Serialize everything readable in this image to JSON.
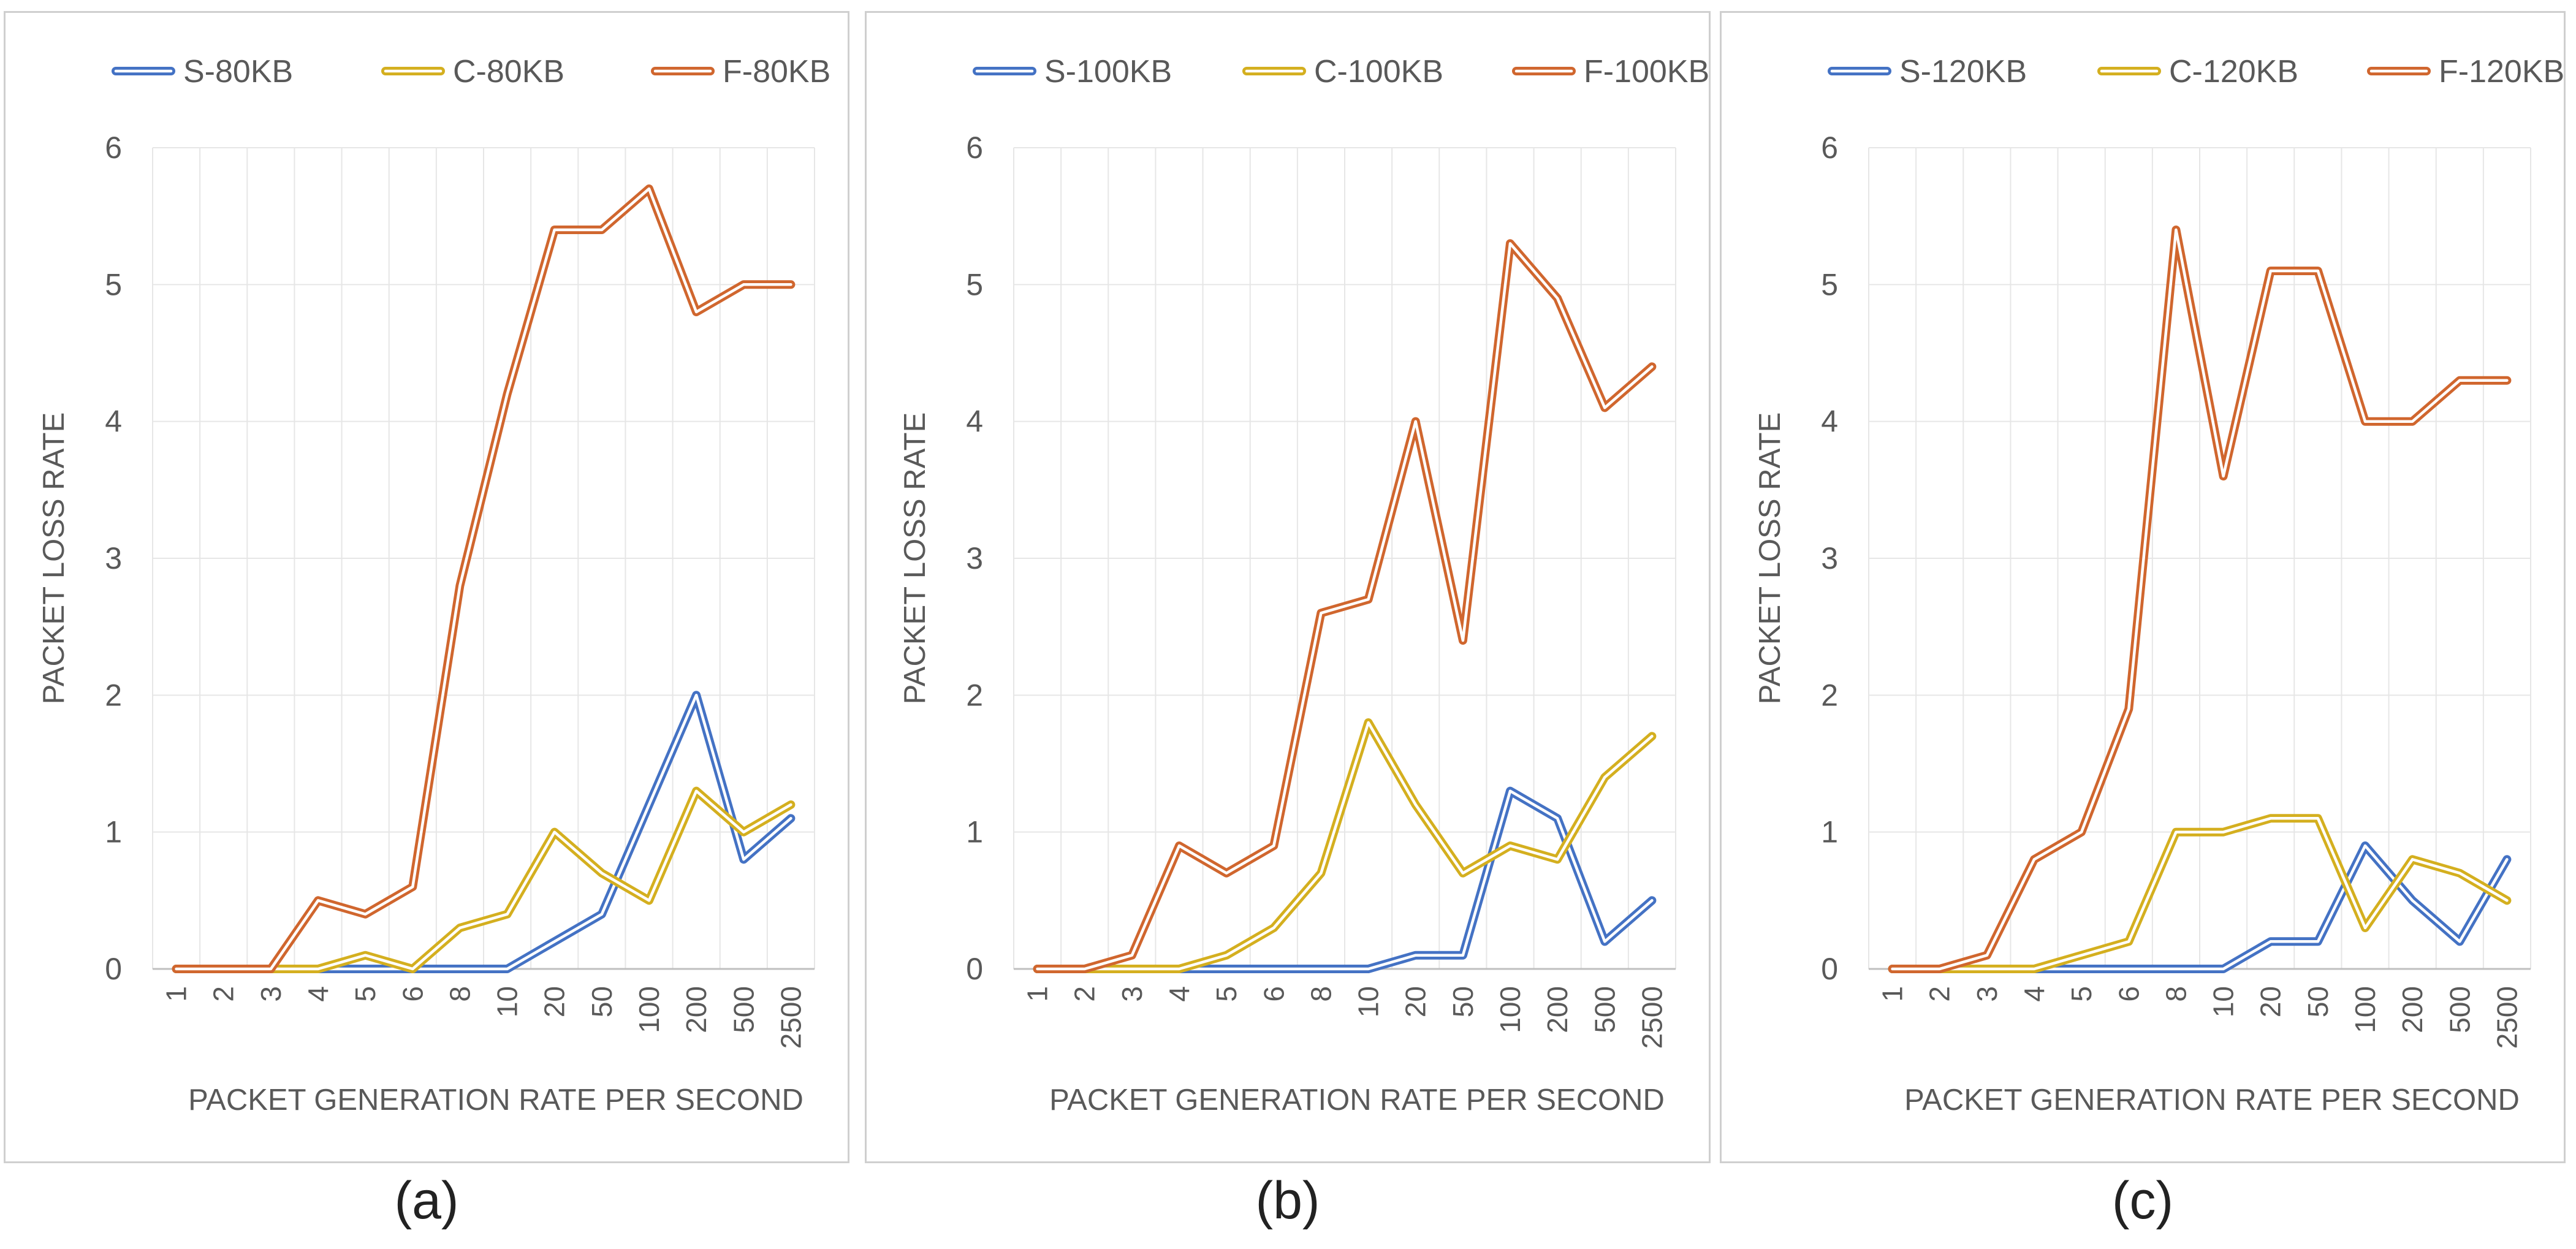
{
  "chart_data": [
    {
      "type": "line",
      "caption": "(a)",
      "xlabel": "PACKET GENERATION RATE PER SECOND",
      "ylabel": "PACKET LOSS RATE",
      "categories": [
        "1",
        "2",
        "3",
        "4",
        "5",
        "6",
        "8",
        "10",
        "20",
        "50",
        "100",
        "200",
        "500",
        "2500"
      ],
      "ylim": [
        0,
        6
      ],
      "yticks": [
        "0",
        "1",
        "2",
        "3",
        "4",
        "5",
        "6"
      ],
      "grid": true,
      "legend": "top",
      "series": [
        {
          "name": "S-80KB",
          "color": "#4472C4",
          "values": [
            0,
            0,
            0,
            0,
            0,
            0,
            0,
            0,
            0.2,
            0.4,
            1.2,
            2.0,
            0.8,
            1.1
          ]
        },
        {
          "name": "C-80KB",
          "color": "#D4AF1F",
          "values": [
            0,
            0,
            0,
            0,
            0.1,
            0,
            0.3,
            0.4,
            1.0,
            0.7,
            0.5,
            1.3,
            1.0,
            1.2
          ]
        },
        {
          "name": "F-80KB",
          "color": "#D0662E",
          "values": [
            0,
            0,
            0,
            0.5,
            0.4,
            0.6,
            2.8,
            4.2,
            5.4,
            5.4,
            5.7,
            4.8,
            5.0,
            5.0
          ]
        }
      ]
    },
    {
      "type": "line",
      "caption": "(b)",
      "xlabel": "PACKET GENERATION RATE PER SECOND",
      "ylabel": "PACKET LOSS RATE",
      "categories": [
        "1",
        "2",
        "3",
        "4",
        "5",
        "6",
        "8",
        "10",
        "20",
        "50",
        "100",
        "200",
        "500",
        "2500"
      ],
      "ylim": [
        0,
        6
      ],
      "yticks": [
        "0",
        "1",
        "2",
        "3",
        "4",
        "5",
        "6"
      ],
      "grid": true,
      "legend": "top",
      "series": [
        {
          "name": "S-100KB",
          "color": "#4472C4",
          "values": [
            0,
            0,
            0,
            0,
            0,
            0,
            0,
            0,
            0.1,
            0.1,
            1.3,
            1.1,
            0.2,
            0.5
          ]
        },
        {
          "name": "C-100KB",
          "color": "#D4AF1F",
          "values": [
            0,
            0,
            0,
            0,
            0.1,
            0.3,
            0.7,
            1.8,
            1.2,
            0.7,
            0.9,
            0.8,
            1.4,
            1.7
          ]
        },
        {
          "name": "F-100KB",
          "color": "#D0662E",
          "values": [
            0,
            0,
            0.1,
            0.9,
            0.7,
            0.9,
            2.6,
            2.7,
            4.0,
            2.4,
            5.3,
            4.9,
            4.1,
            4.4
          ]
        }
      ]
    },
    {
      "type": "line",
      "caption": "(c)",
      "xlabel": "PACKET GENERATION RATE PER SECOND",
      "ylabel": "PACKET LOSS RATE",
      "categories": [
        "1",
        "2",
        "3",
        "4",
        "5",
        "6",
        "8",
        "10",
        "20",
        "50",
        "100",
        "200",
        "500",
        "2500"
      ],
      "ylim": [
        0,
        6
      ],
      "yticks": [
        "0",
        "1",
        "2",
        "3",
        "4",
        "5",
        "6"
      ],
      "grid": true,
      "legend": "top",
      "series": [
        {
          "name": "S-120KB",
          "color": "#4472C4",
          "values": [
            0,
            0,
            0,
            0,
            0,
            0,
            0,
            0,
            0.2,
            0.2,
            0.9,
            0.5,
            0.2,
            0.8
          ]
        },
        {
          "name": "C-120KB",
          "color": "#D4AF1F",
          "values": [
            0,
            0,
            0,
            0,
            0.1,
            0.2,
            1.0,
            1.0,
            1.1,
            1.1,
            0.3,
            0.8,
            0.7,
            0.5
          ]
        },
        {
          "name": "F-120KB",
          "color": "#D0662E",
          "values": [
            0,
            0,
            0.1,
            0.8,
            1.0,
            1.9,
            5.4,
            3.6,
            5.1,
            5.1,
            4.0,
            4.0,
            4.3,
            4.3
          ]
        }
      ]
    }
  ]
}
